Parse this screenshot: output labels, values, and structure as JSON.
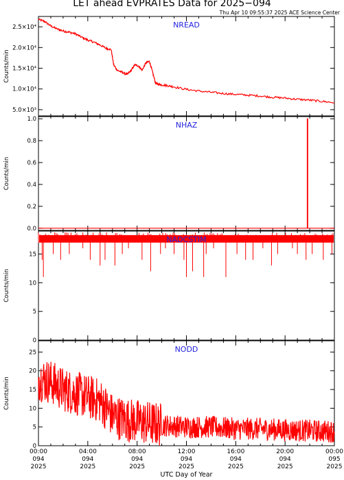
{
  "title": "LET ahead EVPRATES Data for 2025−094",
  "subtitle": "Thu Apr 10 09:55:37 2025 ACE Science Center",
  "colors": {
    "series": "#ff0000",
    "panel_label": "#2222dd",
    "axis": "#000000"
  },
  "chart_data": [
    {
      "type": "line",
      "panel_label": "NREAD",
      "ylabel": "Counts/min",
      "ylim": [
        3500,
        27500
      ],
      "yticks": [
        {
          "value": 5000,
          "label": "5.0×10³"
        },
        {
          "value": 10000,
          "label": "1.0×10⁴"
        },
        {
          "value": 15000,
          "label": "1.5×10⁴"
        },
        {
          "value": 20000,
          "label": "2.0×10⁴"
        },
        {
          "value": 25000,
          "label": "2.5×10⁴"
        }
      ],
      "x": [
        0,
        0.5,
        1,
        1.5,
        2,
        2.5,
        3,
        3.5,
        4,
        4.5,
        5,
        5.5,
        5.9,
        6.1,
        6.4,
        6.8,
        7.2,
        7.5,
        7.8,
        8.1,
        8.4,
        8.7,
        9.0,
        9.2,
        9.5,
        9.7,
        10,
        10.5,
        11,
        12,
        13,
        14,
        15,
        16,
        17,
        18,
        19,
        20,
        21,
        22,
        23,
        24
      ],
      "y": [
        26800,
        26300,
        25200,
        24500,
        24000,
        23700,
        23300,
        22500,
        21800,
        21300,
        20600,
        19800,
        19500,
        15800,
        14500,
        14000,
        13500,
        14400,
        15800,
        15600,
        14500,
        16200,
        16700,
        14600,
        11400,
        11200,
        11000,
        10800,
        10500,
        9900,
        9500,
        9200,
        8900,
        8700,
        8500,
        8300,
        8000,
        7800,
        7500,
        7300,
        7000,
        6700
      ]
    },
    {
      "type": "line",
      "panel_label": "NHAZ",
      "ylabel": "Counts/min",
      "ylim": [
        -0.02,
        1.02
      ],
      "yticks": [
        {
          "value": 0,
          "label": "0.0"
        },
        {
          "value": 0.2,
          "label": "0.2"
        },
        {
          "value": 0.4,
          "label": "0.4"
        },
        {
          "value": 0.6,
          "label": "0.6"
        },
        {
          "value": 0.8,
          "label": "0.8"
        },
        {
          "value": 1.0,
          "label": "1.0"
        }
      ],
      "x": [
        0,
        21.8,
        21.8,
        21.84,
        21.84,
        24
      ],
      "y": [
        0,
        0,
        1,
        1,
        0,
        0
      ]
    },
    {
      "type": "line",
      "panel_label": "NADCSTIM",
      "ylabel": "Counts/min",
      "ylim": [
        0,
        19
      ],
      "yticks": [
        {
          "value": 0,
          "label": "0"
        },
        {
          "value": 5,
          "label": "5"
        },
        {
          "value": 10,
          "label": "10"
        },
        {
          "value": 15,
          "label": "15"
        }
      ],
      "baseline": 17.5,
      "dips": [
        [
          0.3,
          14
        ],
        [
          0.4,
          11
        ],
        [
          1.2,
          15
        ],
        [
          1.8,
          14
        ],
        [
          2.5,
          15
        ],
        [
          3.6,
          16
        ],
        [
          4.2,
          14
        ],
        [
          5.0,
          13
        ],
        [
          5.4,
          14
        ],
        [
          6.2,
          13
        ],
        [
          6.8,
          15
        ],
        [
          7.3,
          16
        ],
        [
          8.4,
          14
        ],
        [
          9.1,
          12
        ],
        [
          9.9,
          15
        ],
        [
          10.3,
          16
        ],
        [
          11.0,
          15
        ],
        [
          11.8,
          14
        ],
        [
          12.0,
          11
        ],
        [
          12.5,
          12
        ],
        [
          13.4,
          11
        ],
        [
          13.6,
          15
        ],
        [
          14.2,
          16
        ],
        [
          15.2,
          11
        ],
        [
          16.1,
          15
        ],
        [
          16.8,
          14
        ],
        [
          17.4,
          14
        ],
        [
          18.2,
          16
        ],
        [
          18.9,
          13
        ],
        [
          19.4,
          15
        ],
        [
          20.6,
          16
        ],
        [
          21.0,
          15
        ],
        [
          21.7,
          14
        ],
        [
          22.2,
          15
        ],
        [
          23.1,
          14
        ],
        [
          23.8,
          15
        ]
      ]
    },
    {
      "type": "line",
      "panel_label": "NODD",
      "ylabel": "Counts/min",
      "ylim": [
        0,
        28
      ],
      "yticks": [
        {
          "value": 0,
          "label": "0"
        },
        {
          "value": 5,
          "label": "5"
        },
        {
          "value": 10,
          "label": "10"
        },
        {
          "value": 15,
          "label": "15"
        },
        {
          "value": 20,
          "label": "20"
        },
        {
          "value": 25,
          "label": "25"
        }
      ],
      "trend_x": [
        0,
        1,
        2,
        3,
        4,
        5,
        6,
        7,
        8,
        9,
        10,
        12,
        14,
        16,
        18,
        20,
        22,
        24
      ],
      "trend_y": [
        18,
        17,
        15,
        14,
        13,
        12,
        8,
        7,
        6.5,
        6,
        5.5,
        5,
        5,
        4.5,
        4.5,
        4.2,
        4,
        3.8
      ],
      "noise_amplitude": [
        6,
        5
      ]
    }
  ],
  "xaxis": {
    "label": "UTC Day of Year",
    "ticks": [
      {
        "hour": 0,
        "lines": [
          "00:00",
          "094",
          "2025"
        ]
      },
      {
        "hour": 4,
        "lines": [
          "04:00",
          "094",
          "2025"
        ]
      },
      {
        "hour": 8,
        "lines": [
          "08:00",
          "094",
          "2025"
        ]
      },
      {
        "hour": 12,
        "lines": [
          "12:00",
          "094",
          "2025"
        ]
      },
      {
        "hour": 16,
        "lines": [
          "16:00",
          "094",
          "2025"
        ]
      },
      {
        "hour": 20,
        "lines": [
          "20:00",
          "094",
          "2025"
        ]
      },
      {
        "hour": 24,
        "lines": [
          "00:00",
          "095",
          "2025"
        ]
      }
    ]
  }
}
